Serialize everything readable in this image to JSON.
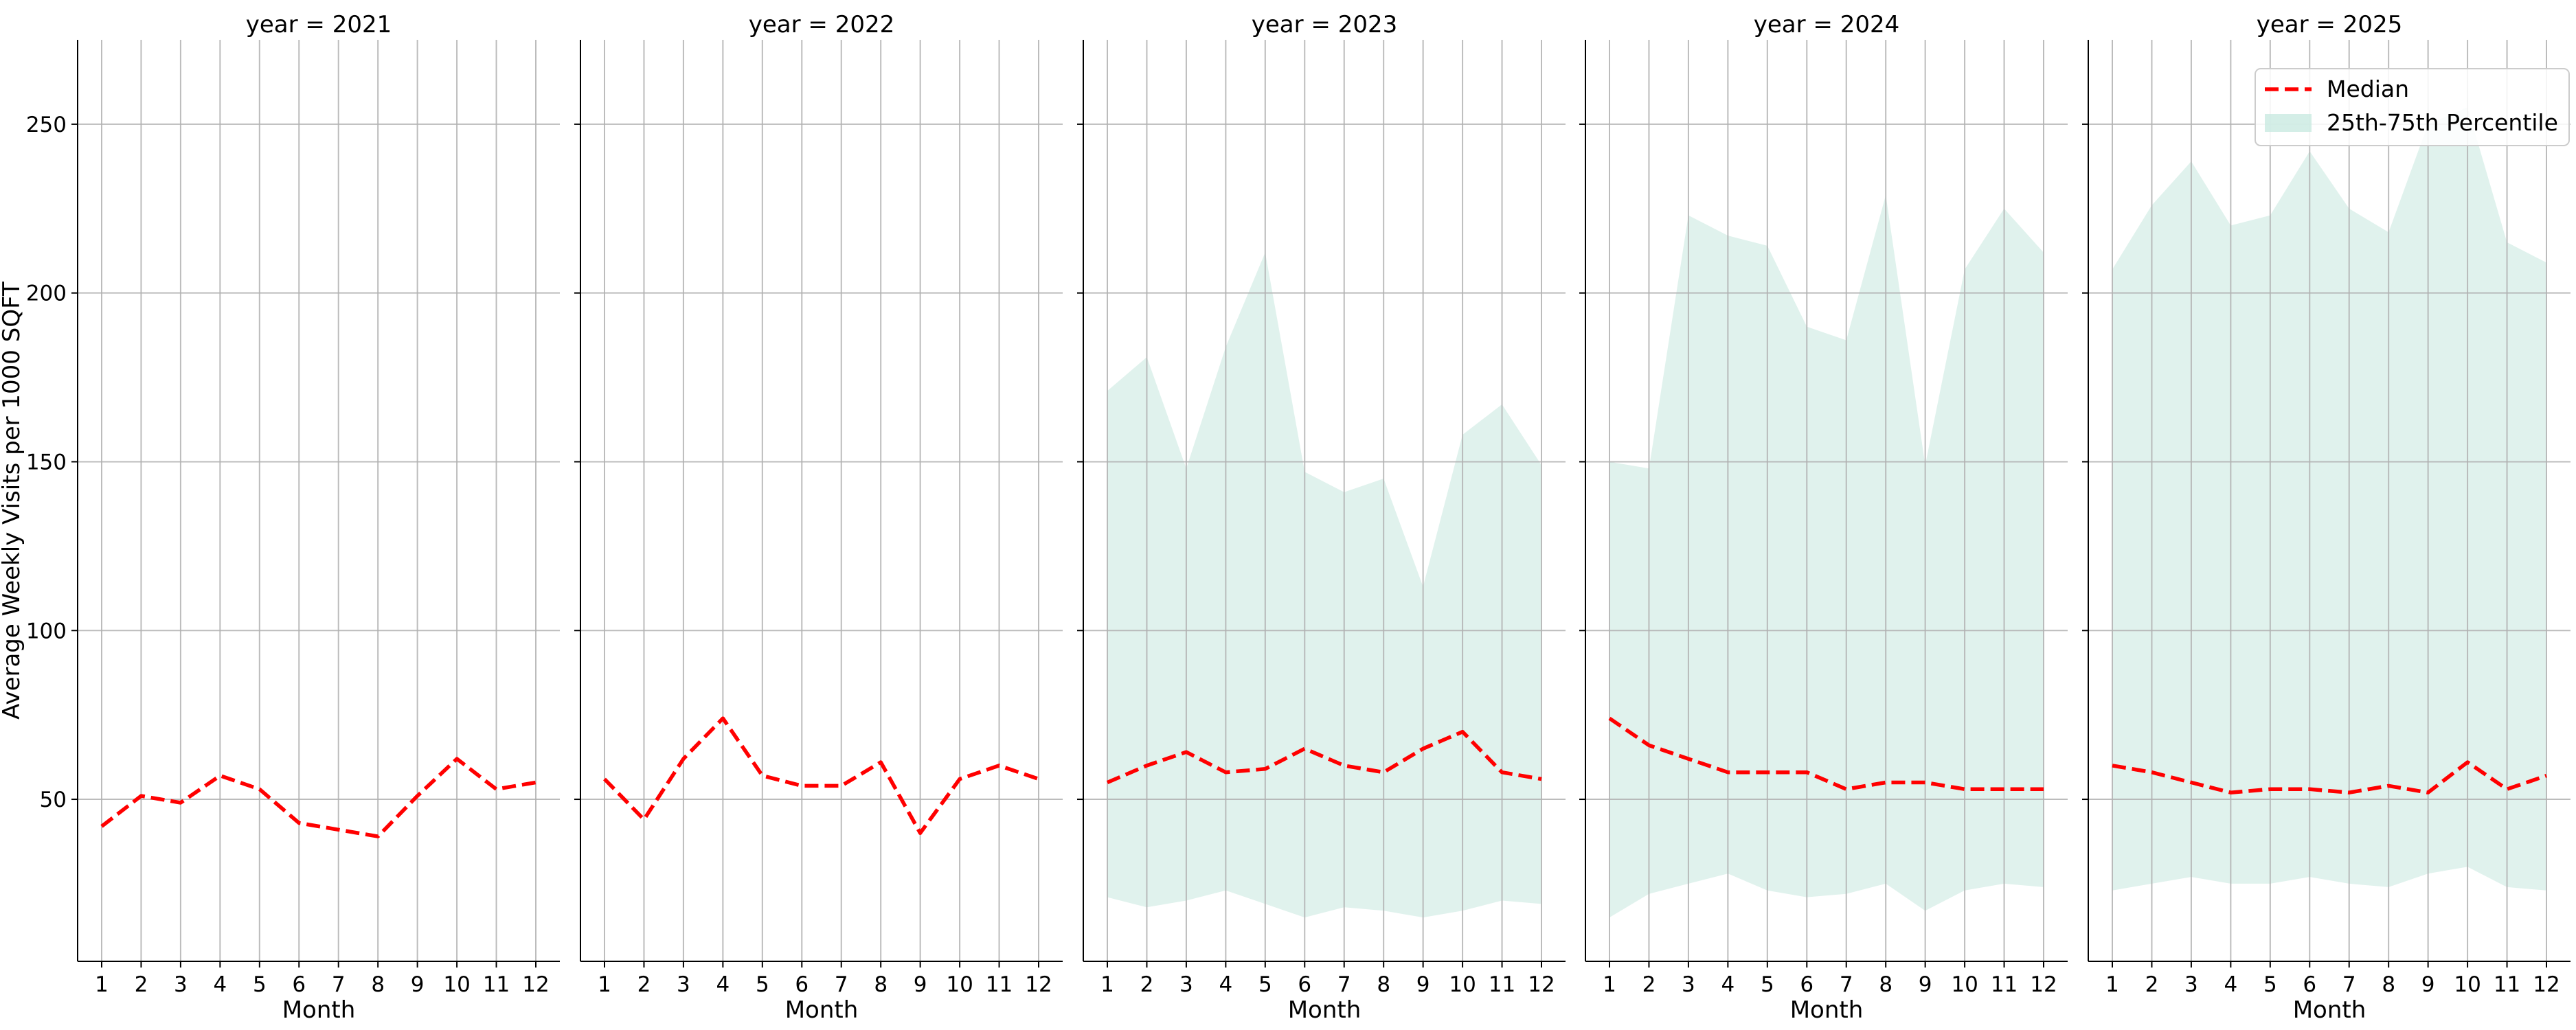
{
  "chart_data": {
    "type": "line",
    "ylabel": "Average Weekly Visits per 1000 SQFT",
    "xlabel": "Month",
    "x": [
      1,
      2,
      3,
      4,
      5,
      6,
      7,
      8,
      9,
      10,
      11,
      12
    ],
    "x_ticks": [
      "1",
      "2",
      "3",
      "4",
      "5",
      "6",
      "7",
      "8",
      "9",
      "10",
      "11",
      "12"
    ],
    "ylim": [
      2,
      275
    ],
    "y_ticks": [
      50,
      100,
      150,
      200,
      250
    ],
    "grid": true,
    "shared_y": true,
    "legend": {
      "placement": "top-right",
      "entries": [
        {
          "label": "Median",
          "color": "#ff0000",
          "style": "dashed-line"
        },
        {
          "label": "25th-75th Percentile",
          "color": "#c6e8df",
          "style": "filled-area"
        }
      ]
    },
    "colors": {
      "median": "#ff0000",
      "band": "#c6e8df",
      "grid": "#b0b0b0"
    },
    "panels": [
      {
        "title": "year = 2021",
        "median": [
          42,
          51,
          49,
          57,
          53,
          43,
          41,
          39,
          51,
          62,
          53,
          55
        ],
        "p25": null,
        "p75": null
      },
      {
        "title": "year = 2022",
        "median": [
          56,
          44,
          62,
          74,
          57,
          54,
          54,
          61,
          40,
          56,
          60,
          56
        ],
        "p25": null,
        "p75": null
      },
      {
        "title": "year = 2023",
        "median": [
          55,
          60,
          64,
          58,
          59,
          65,
          60,
          58,
          65,
          70,
          58,
          56
        ],
        "p25": [
          21,
          18,
          20,
          23,
          19,
          15,
          18,
          17,
          15,
          17,
          20,
          19
        ],
        "p75": [
          171,
          181,
          148,
          184,
          212,
          147,
          141,
          145,
          113,
          158,
          167,
          149
        ]
      },
      {
        "title": "year = 2024",
        "median": [
          74,
          66,
          62,
          58,
          58,
          58,
          53,
          55,
          55,
          53,
          53,
          53
        ],
        "p25": [
          15,
          22,
          25,
          28,
          23,
          21,
          22,
          25,
          17,
          23,
          25,
          24
        ],
        "p75": [
          150,
          148,
          223,
          217,
          214,
          190,
          186,
          229,
          149,
          207,
          225,
          212
        ]
      },
      {
        "title": "year = 2025",
        "median": [
          60,
          58,
          55,
          52,
          53,
          53,
          52,
          54,
          52,
          61,
          53,
          57
        ],
        "p25": [
          23,
          25,
          27,
          25,
          25,
          27,
          25,
          24,
          28,
          30,
          24,
          23
        ],
        "p75": [
          207,
          226,
          239,
          220,
          223,
          242,
          225,
          218,
          250,
          255,
          215,
          209
        ]
      }
    ]
  }
}
